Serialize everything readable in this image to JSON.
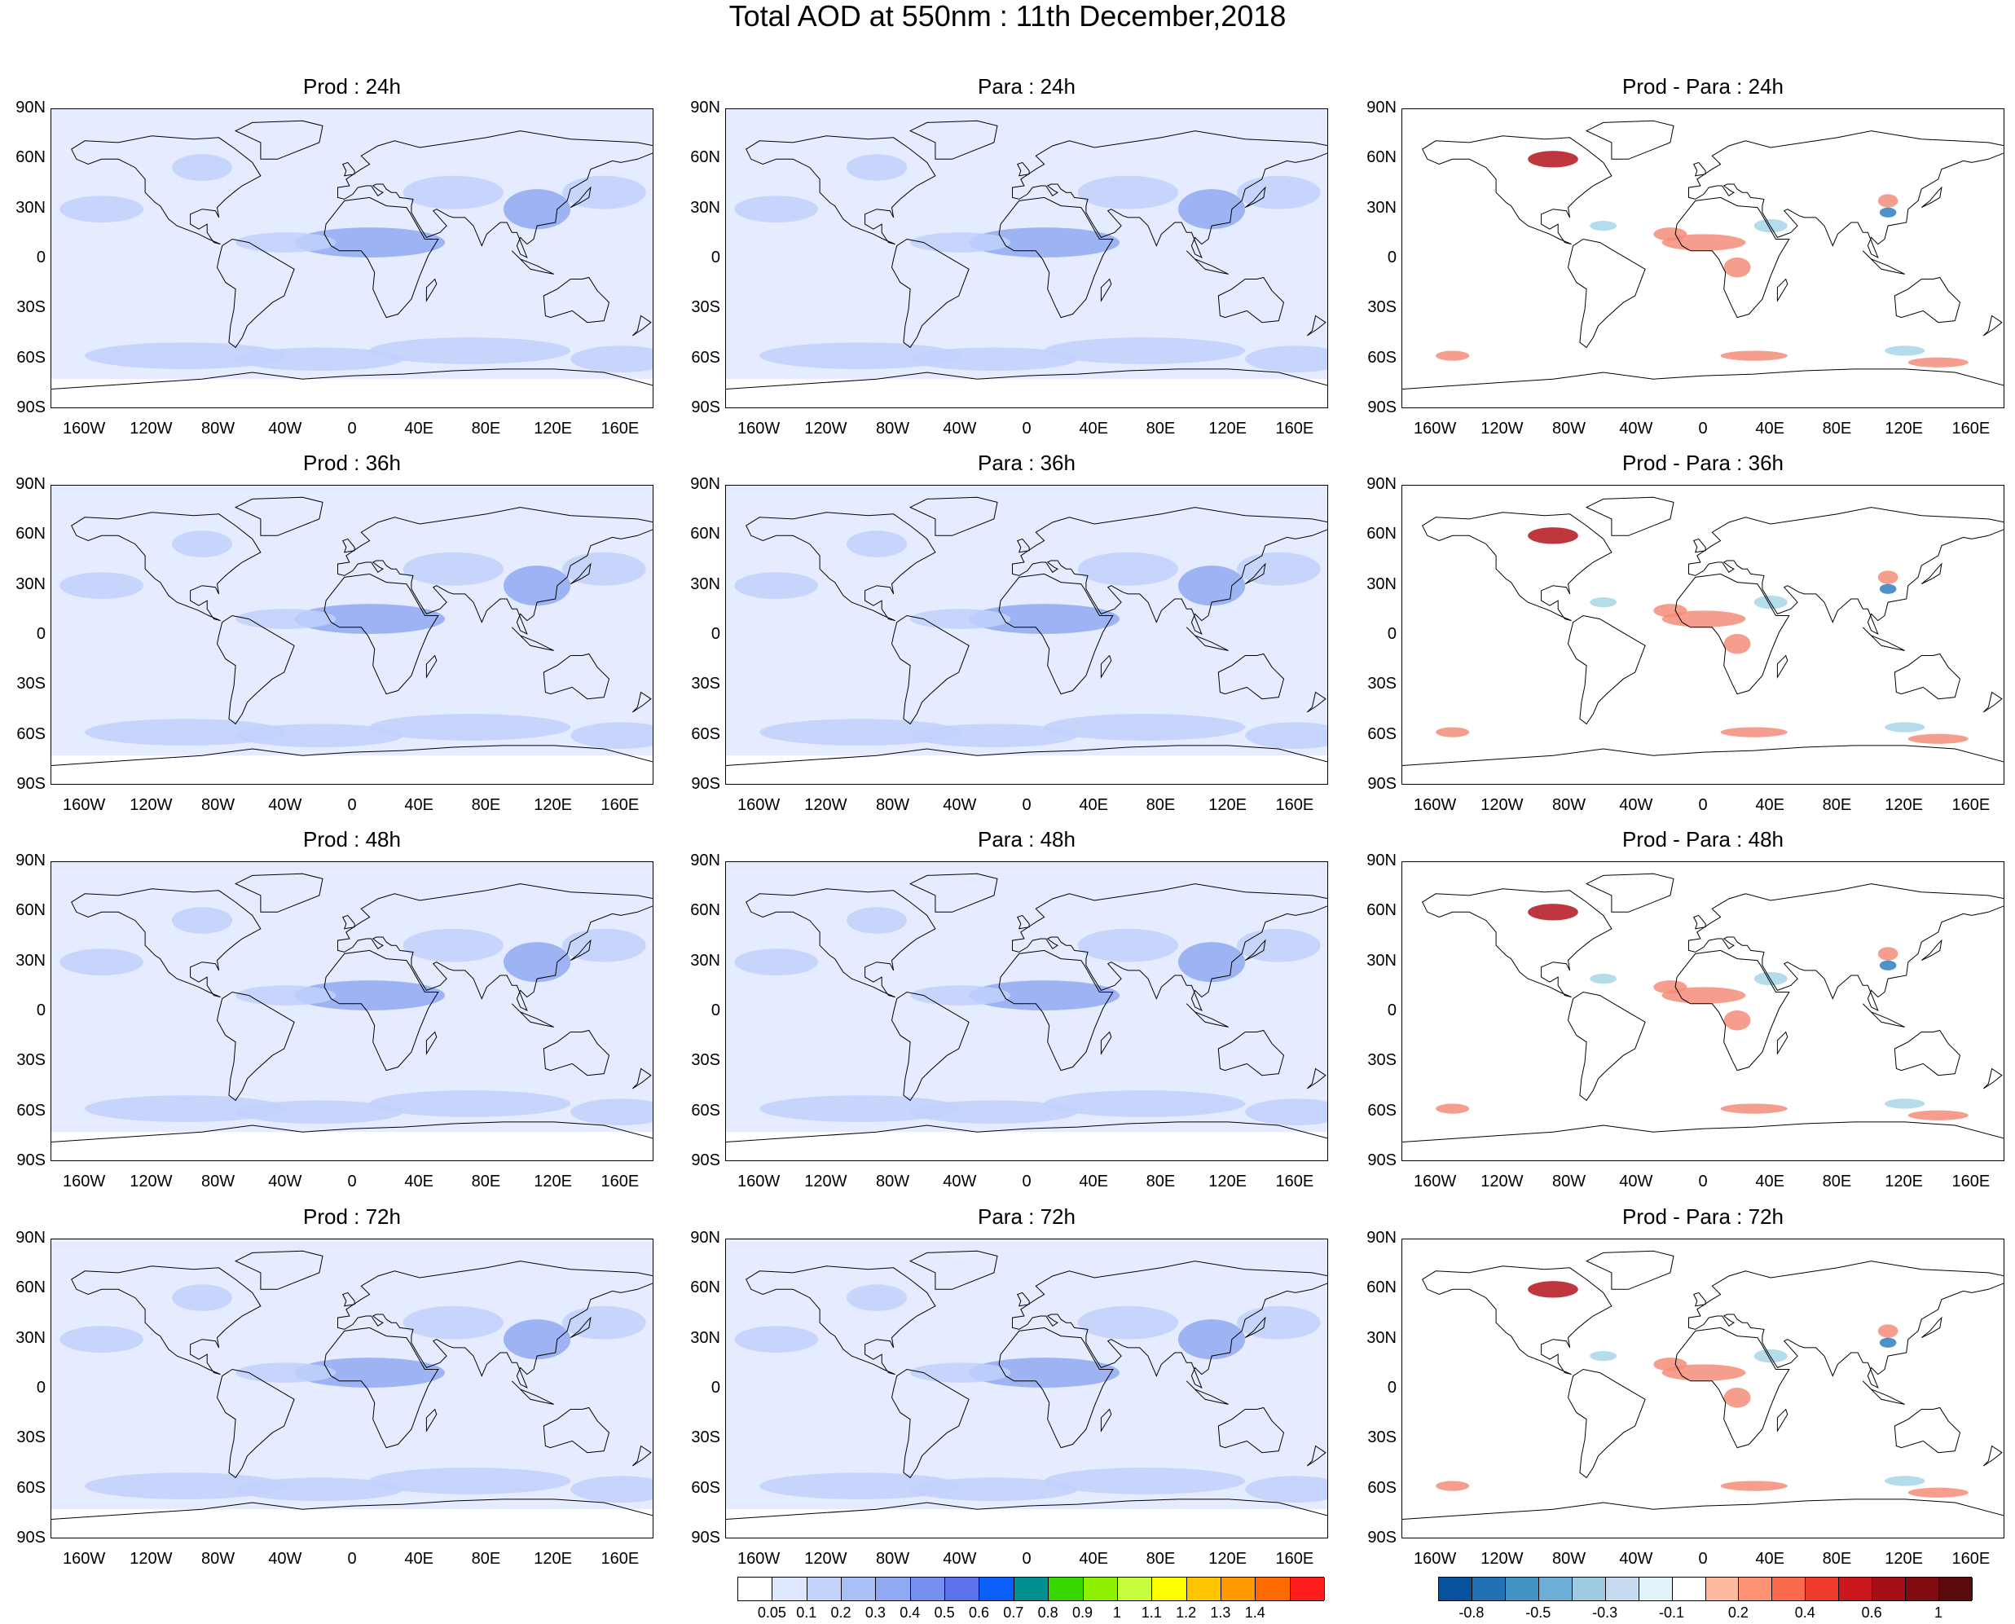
{
  "title": "Total AOD at 550nm : 11th December,2018",
  "lat_labels": [
    "90N",
    "60N",
    "30N",
    "0",
    "30S",
    "60S",
    "90S"
  ],
  "lon_labels": [
    "160W",
    "120W",
    "80W",
    "40W",
    "0",
    "40E",
    "80E",
    "120E",
    "160E"
  ],
  "panels": [
    {
      "title": "Prod : 24h",
      "kind": "aod"
    },
    {
      "title": "Para : 24h",
      "kind": "aod"
    },
    {
      "title": "Prod - Para : 24h",
      "kind": "diff"
    },
    {
      "title": "Prod : 36h",
      "kind": "aod"
    },
    {
      "title": "Para : 36h",
      "kind": "aod"
    },
    {
      "title": "Prod - Para : 36h",
      "kind": "diff"
    },
    {
      "title": "Prod : 48h",
      "kind": "aod"
    },
    {
      "title": "Para : 48h",
      "kind": "aod"
    },
    {
      "title": "Prod - Para : 48h",
      "kind": "diff"
    },
    {
      "title": "Prod : 72h",
      "kind": "aod"
    },
    {
      "title": "Para : 72h",
      "kind": "aod"
    },
    {
      "title": "Prod - Para : 72h",
      "kind": "diff"
    }
  ],
  "aod_colorbar": {
    "labels": [
      "0.05",
      "0.1",
      "0.2",
      "0.3",
      "0.4",
      "0.5",
      "0.6",
      "0.7",
      "0.8",
      "0.9",
      "1",
      "1.1",
      "1.2",
      "1.3",
      "1.4"
    ],
    "colors": [
      "#ffffff",
      "#e0e8ff",
      "#c3d3fb",
      "#a9c0f7",
      "#8fa9f2",
      "#7590ee",
      "#5c72ea",
      "#0a5ffa",
      "#00908f",
      "#38d600",
      "#8cf000",
      "#c8ff3c",
      "#ffff00",
      "#ffc400",
      "#ff9900",
      "#ff6a00",
      "#ff1d1d"
    ]
  },
  "diff_colorbar": {
    "labels": [
      "-0.8",
      "-0.5",
      "-0.3",
      "-0.1",
      "0.2",
      "0.4",
      "0.6",
      "1"
    ],
    "colors": [
      "#08519c",
      "#2171b5",
      "#4292c6",
      "#6baed6",
      "#9ecae1",
      "#c6dbef",
      "#e0f3f8",
      "#ffffff",
      "#fcbba1",
      "#fc9272",
      "#fb6a4a",
      "#ef3b2c",
      "#cb181d",
      "#a50f15",
      "#800b10",
      "#5a0a0a"
    ]
  },
  "map_colors": {
    "aod_base": "#e6ecff",
    "aod_mid": "#c1d1fb",
    "aod_high": "#8fa9f2",
    "diff_pos": "#f58d7a",
    "diff_pos_strong": "#b3141c",
    "diff_neg": "#a8d6e8",
    "diff_neg_strong": "#2e7fbf"
  }
}
